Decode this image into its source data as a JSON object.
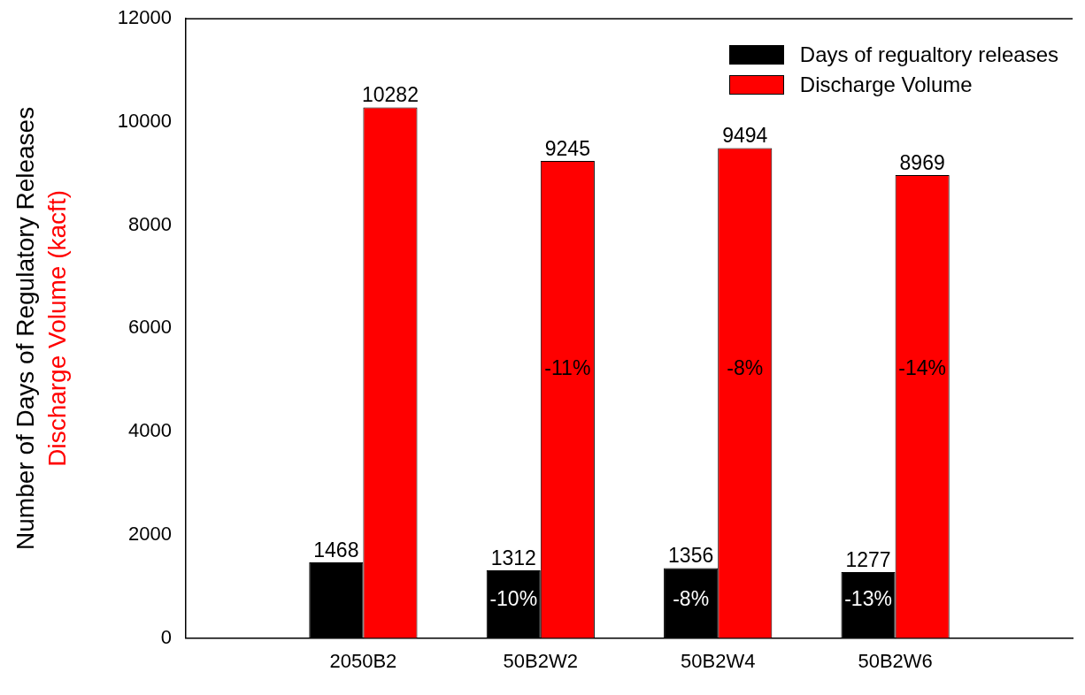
{
  "chart_data": {
    "type": "bar",
    "categories": [
      null,
      "2050B2",
      "50B2W2",
      "50B2W4",
      "50B2W6",
      null
    ],
    "series": [
      {
        "name": "Days of regualtory releases",
        "color": "#000000",
        "values": [
          null,
          1468,
          1312,
          1356,
          1277,
          null
        ]
      },
      {
        "name": "Discharge Volume",
        "color": "#ff0000",
        "values": [
          null,
          10282,
          9245,
          9494,
          8969,
          null
        ]
      }
    ],
    "ylabel": "Number of Days of Regulatory Releases\nDischarge Volume (kacft)",
    "ylim": [
      0,
      12000
    ],
    "yticks": [
      0,
      2000,
      4000,
      6000,
      8000,
      10000,
      12000
    ],
    "data_labels": true,
    "grid": false,
    "legend": "top right",
    "annotations": [
      {
        "text": "-10%",
        "x": "50B2W2",
        "y": 740
      },
      {
        "text": "-8%",
        "x": "50B2W4",
        "y": 740
      },
      {
        "text": "-13%",
        "x": "50B2W6",
        "y": 740
      },
      {
        "text": "-11%",
        "x": "50B2W2",
        "y": 5200
      },
      {
        "text": "-8%",
        "x": "50B2W4",
        "y": 5200
      },
      {
        "text": "-14%",
        "x": "50B2W6",
        "y": 5200
      }
    ]
  }
}
